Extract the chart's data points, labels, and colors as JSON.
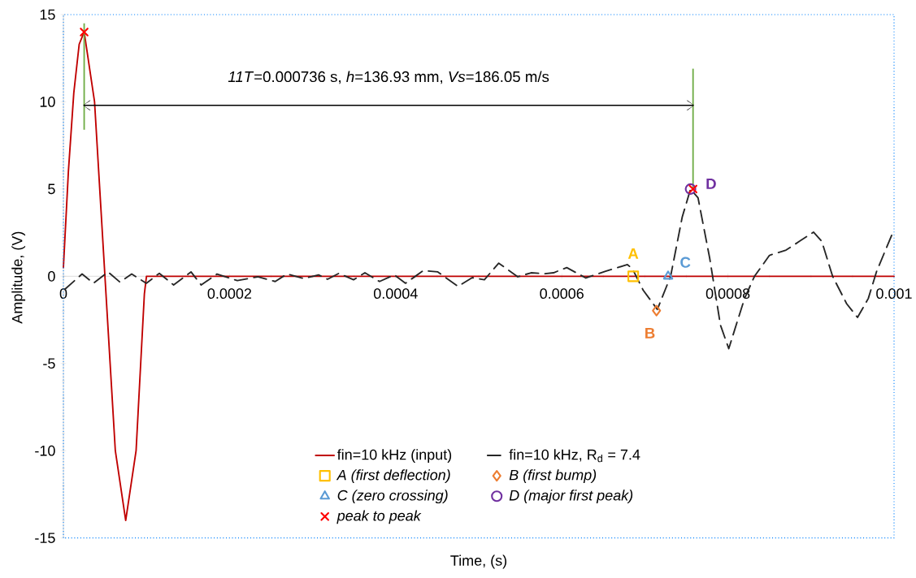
{
  "chart_data": {
    "type": "line",
    "xlabel": "Time, (s)",
    "ylabel": "Amplitude, (V)",
    "xlim": [
      0,
      0.001
    ],
    "xticks": [
      0,
      0.0002,
      0.0004,
      0.0006,
      0.0008,
      0.001
    ],
    "ylim": [
      -15,
      15
    ],
    "yticks": [
      -15,
      -10,
      -5,
      0,
      5,
      10,
      15
    ],
    "legend": "bottom",
    "grid": false,
    "series": [
      {
        "name": "fin=10 kHz (input)",
        "color": "#c00000",
        "line_style": "solid",
        "marker": "none",
        "x": [
          0,
          6e-06,
          1.25e-05,
          1.9e-05,
          2.5e-05,
          3.75e-05,
          5e-05,
          6.25e-05,
          7.5e-05,
          8.75e-05,
          9.75e-05,
          0.0001,
          0.001
        ],
        "values": [
          0.5,
          6,
          10.5,
          13.3,
          14,
          10,
          0,
          -10,
          -14,
          -10,
          -1,
          0,
          0
        ]
      },
      {
        "name": "fin=10 kHz, R$_{d}$ = 7.4",
        "color": "#262626",
        "line_style": "dashed",
        "marker": "none",
        "x": [
          1.6e-06,
          2.25e-05,
          3.62e-05,
          5.38e-05,
          6.8e-05,
          8.22e-05,
          9.98e-05,
          0.0001155,
          0.0001327,
          0.0001536,
          0.0001659,
          0.0001849,
          0.0002094,
          0.0002339,
          0.000255,
          0.0002691,
          0.0002896,
          0.0003072,
          0.000318,
          0.0003317,
          0.0003493,
          0.000363,
          0.0003806,
          0.0003982,
          0.0004119,
          0.0004335,
          0.0004507,
          0.0004751,
          0.0004922,
          0.0005068,
          0.0005241,
          0.000547,
          0.000563,
          0.00058,
          0.00059,
          0.000606,
          0.000629,
          0.000652,
          0.000679,
          0.000685,
          0.000698,
          0.000715,
          0.000731,
          0.000745,
          0.000755,
          0.000764,
          0.000778,
          0.000791,
          0.000801,
          0.00082,
          0.000832,
          0.00085,
          0.00087,
          0.000886,
          0.000903,
          0.000913,
          0.000926,
          0.000943,
          0.000956,
          0.000969,
          0.000979,
          0.001
        ],
        "values": [
          -0.75,
          0.13,
          -0.4,
          0.25,
          -0.33,
          0.13,
          -0.4,
          0.17,
          -0.5,
          0.25,
          -0.5,
          0.13,
          -0.25,
          -0.03,
          -0.3,
          0.13,
          -0.13,
          0.08,
          -0.17,
          0.17,
          -0.2,
          0.2,
          -0.3,
          0.08,
          -0.4,
          0.33,
          0.25,
          -0.58,
          -0.08,
          -0.2,
          0.75,
          -0.03,
          0.2,
          0.15,
          0.2,
          0.5,
          -0.1,
          0.28,
          0.67,
          0.43,
          -0.8,
          -1.9,
          0,
          3.4,
          5,
          4.5,
          1.05,
          -2.8,
          -4.15,
          -1.27,
          0,
          1.2,
          1.5,
          2,
          2.53,
          2,
          0,
          -1.58,
          -2.36,
          -1.27,
          0.28,
          2.68
        ]
      },
      {
        "name": "A (first deflection)",
        "type": "scatter",
        "color": "#ffc000",
        "marker": "square",
        "x": [
          0.000686
        ],
        "values": [
          0
        ]
      },
      {
        "name": "B (first bump)",
        "type": "scatter",
        "color": "#ed7d31",
        "marker": "diamond",
        "x": [
          0.000714
        ],
        "values": [
          -1.97
        ]
      },
      {
        "name": "C (zero crossing)",
        "type": "scatter",
        "color": "#5b9bd5",
        "marker": "triangle",
        "x": [
          0.000728
        ],
        "values": [
          0
        ]
      },
      {
        "name": "D (major first peak)",
        "type": "scatter",
        "color": "#7030a0",
        "marker": "circle",
        "x": [
          0.000755
        ],
        "values": [
          5
        ]
      },
      {
        "name": "peak to peak",
        "type": "scatter",
        "color": "#ff0000",
        "marker": "cross",
        "x": [
          2.5e-05,
          0.000758
        ],
        "values": [
          14,
          5
        ]
      }
    ],
    "ref_lines": [
      {
        "axis": "x",
        "value": 2.5e-05,
        "color": "#70ad47"
      },
      {
        "axis": "x",
        "value": 0.000758,
        "color": "#70ad47"
      }
    ],
    "annotations": [
      "*11T*=0.000736 s, *h*=136.93 mm, *Vs*=186.05 m/s",
      "A",
      "B",
      "C",
      "D"
    ]
  }
}
